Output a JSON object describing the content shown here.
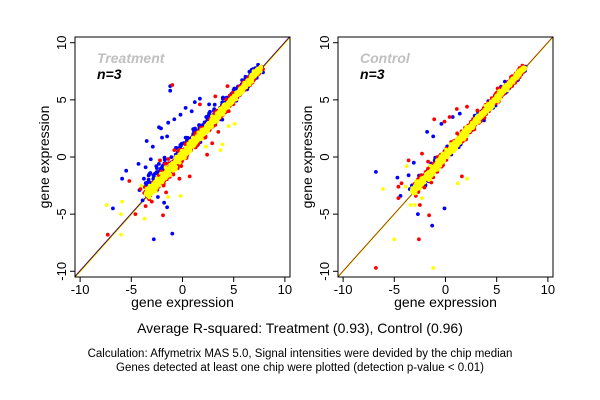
{
  "chart_data": [
    {
      "type": "scatter",
      "panel": "treatment",
      "title": "Treatment",
      "annotation": "n=3",
      "xlabel": "gene expression",
      "ylabel": "gene expression",
      "xlim": [
        -10.5,
        10.5
      ],
      "ylim": [
        -10.5,
        10.5
      ],
      "xticks": [
        -10,
        -5,
        0,
        5,
        10
      ],
      "yticks": [
        -10,
        -5,
        0,
        5,
        10
      ],
      "tick_labels": [
        "-10",
        "-5",
        "0",
        "5",
        "10"
      ],
      "reference_line": {
        "slope": 1,
        "intercept": 0,
        "colors": [
          "#0000ff",
          "#ff0000",
          "#ffff00"
        ]
      },
      "band": {
        "x_range": [
          -3.5,
          7.8
        ],
        "spread_yellow": 0.45,
        "spread_red": 0.75,
        "spread_blue": 1.1,
        "upward_bias_blue": 0.9,
        "count": 900
      },
      "series": [
        {
          "name": "blue",
          "color": "#0000ff",
          "points": [
            [
              -1.2,
              6.2
            ],
            [
              -1.2,
              5.8
            ],
            [
              -4.2,
              -2.9
            ],
            [
              -3.3,
              -2.3
            ],
            [
              -2.8,
              -7.2
            ],
            [
              -1.0,
              -6.7
            ],
            [
              -6.8,
              -4.5
            ],
            [
              -5.9,
              -1.9
            ],
            [
              -5.5,
              -1.2
            ],
            [
              -4.3,
              -0.6
            ],
            [
              -3.6,
              -0.9
            ],
            [
              -3.1,
              -0.2
            ],
            [
              -2.9,
              0.9
            ],
            [
              -3.5,
              1.4
            ],
            [
              -2.1,
              2.5
            ],
            [
              -1.4,
              3.0
            ],
            [
              -0.8,
              3.3
            ],
            [
              0.3,
              4.3
            ],
            [
              1.7,
              5.1
            ],
            [
              0.9,
              4.0
            ],
            [
              -2.3,
              2.6
            ],
            [
              -2.0,
              1.7
            ],
            [
              -1.5,
              1.8
            ],
            [
              -0.2,
              3.7
            ],
            [
              2.6,
              4.6
            ],
            [
              1.2,
              4.8
            ],
            [
              -3.9,
              -3.8
            ],
            [
              -2.4,
              -3.5
            ],
            [
              -1.5,
              -4.4
            ],
            [
              -1.8,
              -4.0
            ],
            [
              1.0,
              1.4
            ],
            [
              3.7,
              3.3
            ]
          ]
        },
        {
          "name": "red",
          "color": "#ff0000",
          "points": [
            [
              -1.0,
              6.3
            ],
            [
              -7.3,
              -6.8
            ],
            [
              -4.6,
              -5.0
            ],
            [
              -3.0,
              -3.9
            ],
            [
              -3.6,
              -4.3
            ],
            [
              -1.9,
              -5.1
            ],
            [
              -2.7,
              -2.3
            ],
            [
              -1.6,
              -3.1
            ],
            [
              -0.3,
              -1.9
            ],
            [
              -5.2,
              -2.1
            ],
            [
              -4.1,
              -2.8
            ],
            [
              -2.2,
              -0.3
            ],
            [
              -1.7,
              -0.6
            ],
            [
              -0.8,
              0.6
            ],
            [
              0.7,
              -1.7
            ],
            [
              2.4,
              0.2
            ],
            [
              2.9,
              1.2
            ],
            [
              3.5,
              2.2
            ],
            [
              5.9,
              6.4
            ],
            [
              6.9,
              7.2
            ],
            [
              1.7,
              4.6
            ],
            [
              3.2,
              5.3
            ],
            [
              4.4,
              6.2
            ]
          ]
        },
        {
          "name": "yellow",
          "color": "#ffff00",
          "points": [
            [
              -7.4,
              -4.2
            ],
            [
              -6.0,
              -6.8
            ],
            [
              -6.0,
              -5.0
            ],
            [
              -5.9,
              -3.9
            ],
            [
              -3.7,
              -5.4
            ],
            [
              -4.0,
              -2.5
            ],
            [
              -1.4,
              -3.5
            ],
            [
              -0.2,
              -3.4
            ],
            [
              2.7,
              2.6
            ],
            [
              3.9,
              1.1
            ],
            [
              4.5,
              2.7
            ],
            [
              3.7,
              0.6
            ],
            [
              5.1,
              2.9
            ],
            [
              2.3,
              0.9
            ]
          ]
        }
      ]
    },
    {
      "type": "scatter",
      "panel": "control",
      "title": "Control",
      "annotation": "n=3",
      "xlabel": "gene expression",
      "ylabel": "gene expression",
      "xlim": [
        -10.5,
        10.5
      ],
      "ylim": [
        -10.5,
        10.5
      ],
      "xticks": [
        -10,
        -5,
        0,
        5,
        10
      ],
      "yticks": [
        -10,
        -5,
        0,
        5,
        10
      ],
      "tick_labels": [
        "-10",
        "-5",
        "0",
        "5",
        "10"
      ],
      "reference_line": {
        "slope": 1,
        "intercept": 0,
        "colors": [
          "#ff0000",
          "#ffff00"
        ]
      },
      "band": {
        "x_range": [
          -3.2,
          7.8
        ],
        "spread_yellow": 0.4,
        "spread_red": 0.65,
        "spread_blue": 0.7,
        "upward_bias_blue": 0.2,
        "count": 900
      },
      "series": [
        {
          "name": "blue",
          "color": "#0000ff",
          "points": [
            [
              -6.8,
              -1.3
            ],
            [
              -4.7,
              -1.8
            ],
            [
              -4.4,
              -3.4
            ],
            [
              -3.6,
              -1.6
            ],
            [
              -2.7,
              -5.0
            ],
            [
              -1.3,
              -6.0
            ],
            [
              -0.1,
              -4.5
            ],
            [
              -1.8,
              2.2
            ],
            [
              -1.2,
              1.8
            ],
            [
              -0.4,
              2.9
            ],
            [
              0.7,
              3.5
            ],
            [
              1.4,
              3.8
            ],
            [
              -3.1,
              -0.5
            ],
            [
              5.8,
              6.6
            ],
            [
              7.8,
              7.9
            ]
          ]
        },
        {
          "name": "red",
          "color": "#ff0000",
          "points": [
            [
              -6.8,
              -9.7
            ],
            [
              -2.6,
              -7.2
            ],
            [
              -1.6,
              -5.1
            ],
            [
              -4.6,
              -3.6
            ],
            [
              -2.5,
              -4.2
            ],
            [
              -3.6,
              -0.3
            ],
            [
              -4.3,
              -2.3
            ],
            [
              -4.6,
              -2.6
            ],
            [
              -2.3,
              0.3
            ],
            [
              -1.1,
              3.3
            ],
            [
              -0.1,
              3.1
            ],
            [
              0.4,
              3.5
            ],
            [
              1.1,
              4.2
            ],
            [
              2.1,
              4.4
            ],
            [
              -1.7,
              -0.4
            ],
            [
              5.1,
              6.0
            ],
            [
              6.4,
              7.0
            ],
            [
              1.6,
              -1.7
            ],
            [
              -2.9,
              -3.4
            ]
          ]
        },
        {
          "name": "yellow",
          "color": "#ffff00",
          "points": [
            [
              -6.1,
              -2.8
            ],
            [
              -5.0,
              -7.2
            ],
            [
              -1.2,
              -9.7
            ],
            [
              1.2,
              -2.3
            ],
            [
              2.1,
              -1.9
            ],
            [
              -3.8,
              -0.8
            ],
            [
              -3.4,
              -4.2
            ],
            [
              -3.0,
              -4.2
            ],
            [
              -2.3,
              -3.6
            ],
            [
              -3.9,
              -2.6
            ],
            [
              -3.3,
              -3.0
            ]
          ]
        }
      ]
    }
  ],
  "captions": {
    "r_squared": "Average R-squared: Treatment (0.93), Control (0.96)",
    "calculation": "Calculation: Affymetrix MAS 5.0, Signal intensities were devided by the chip median",
    "detection": "Genes detected at least one chip were plotted (detection p-value < 0.01)"
  }
}
